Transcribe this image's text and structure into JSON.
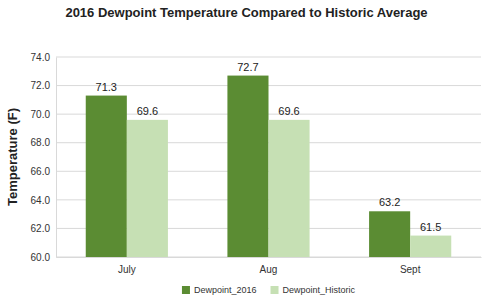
{
  "chart_data": {
    "type": "bar",
    "title": "2016 Dewpoint Temperature Compared to Historic Average",
    "y_label": "Temperature (F)",
    "categories": [
      "July",
      "Aug",
      "Sept"
    ],
    "series": [
      {
        "name": "Dewpoint_2016",
        "color": "#5b8c33",
        "values": [
          71.3,
          72.7,
          63.2
        ]
      },
      {
        "name": "Dewpoint_Historic",
        "color": "#c6e0b4",
        "values": [
          69.6,
          69.6,
          61.5
        ]
      }
    ],
    "ylim": [
      60,
      74
    ],
    "yticks": [
      {
        "value": 60,
        "label": "60.0"
      },
      {
        "value": 62,
        "label": "62.0"
      },
      {
        "value": 64,
        "label": "64.0"
      },
      {
        "value": 66,
        "label": "66.0"
      },
      {
        "value": 68,
        "label": "68.0"
      },
      {
        "value": 70,
        "label": "70.0"
      },
      {
        "value": 72,
        "label": "72.0"
      },
      {
        "value": 74,
        "label": "74.0"
      }
    ],
    "grid": true,
    "legend": "bottom",
    "data_labels": true
  }
}
